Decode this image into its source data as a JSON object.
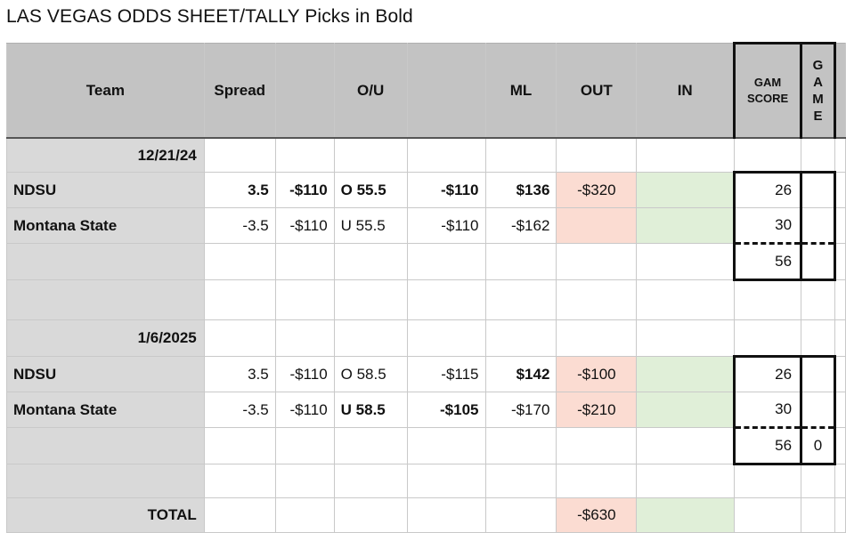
{
  "title": "LAS VEGAS ODDS SHEET/TALLY Picks in Bold",
  "headers": {
    "team": "Team",
    "spread": "Spread",
    "ou": "O/U",
    "ml": "ML",
    "out": "OUT",
    "in": "IN",
    "gam_score_line1": "GAM",
    "gam_score_line2": "SCORE",
    "game_letters": [
      "G",
      "A",
      "M",
      "E"
    ]
  },
  "games": [
    {
      "date": "12/21/24",
      "rows": [
        {
          "team": "NDSU",
          "spread": "3.5",
          "spread_odds": "-$110",
          "ou": "O 55.5",
          "ou_odds": "-$110",
          "ml": "$136",
          "out": "-$320",
          "score": "26",
          "game": ""
        },
        {
          "team": "Montana State",
          "spread": "-3.5",
          "spread_odds": "-$110",
          "ou": "U 55.5",
          "ou_odds": "-$110",
          "ml": "-$162",
          "out": "",
          "score": "30",
          "game": ""
        }
      ],
      "total_score": "56",
      "total_game": ""
    },
    {
      "date": "1/6/2025",
      "rows": [
        {
          "team": "NDSU",
          "spread": "3.5",
          "spread_odds": "-$110",
          "ou": "O 58.5",
          "ou_odds": "-$115",
          "ml": "$142",
          "out": "-$100",
          "score": "26",
          "game": ""
        },
        {
          "team": "Montana State",
          "spread": "-3.5",
          "spread_odds": "-$110",
          "ou": "U 58.5",
          "ou_odds": "-$105",
          "ml": "-$170",
          "out": "-$210",
          "score": "30",
          "game": ""
        }
      ],
      "total_score": "56",
      "total_game": "0"
    }
  ],
  "total": {
    "label": "TOTAL",
    "out": "-$630"
  }
}
